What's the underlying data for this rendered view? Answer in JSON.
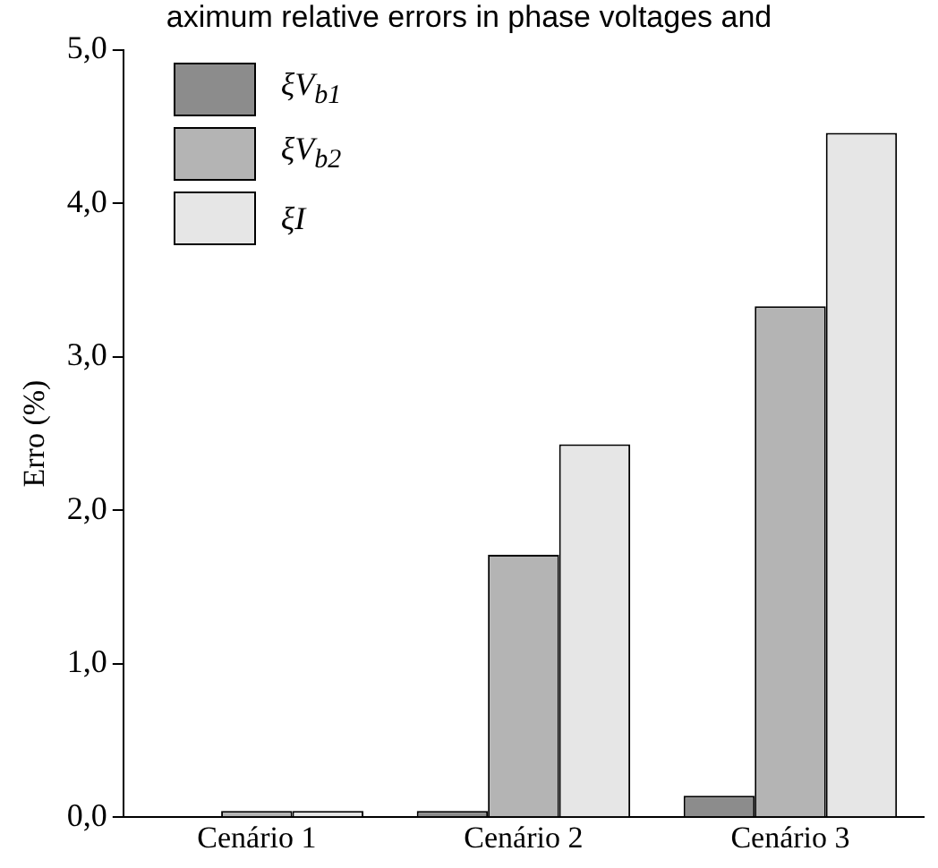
{
  "chart_data": {
    "type": "bar",
    "title": "aximum relative errors in phase voltages and",
    "ylabel": "Erro (%)",
    "categories": [
      "Cenário 1",
      "Cenário 2",
      "Cenário 3"
    ],
    "series": [
      {
        "name": "ξV$_{b1}$",
        "color": "#8c8c8c",
        "values": [
          0,
          0.04,
          0.14
        ]
      },
      {
        "name": "ξV$_{b2}$",
        "color": "#b4b4b4",
        "values": [
          0.04,
          1.71,
          3.33
        ]
      },
      {
        "name": "ξI",
        "color": "#e6e6e6",
        "values": [
          0.04,
          2.43,
          4.46
        ]
      }
    ],
    "ylim": [
      0,
      5
    ],
    "yticks": [
      {
        "value": 0,
        "label": "0,0"
      },
      {
        "value": 1,
        "label": "1,0"
      },
      {
        "value": 2,
        "label": "2,0"
      },
      {
        "value": 3,
        "label": "3,0"
      },
      {
        "value": 4,
        "label": "4,0"
      },
      {
        "value": 5,
        "label": "5,0"
      }
    ],
    "grid": false,
    "legend": "top left"
  }
}
